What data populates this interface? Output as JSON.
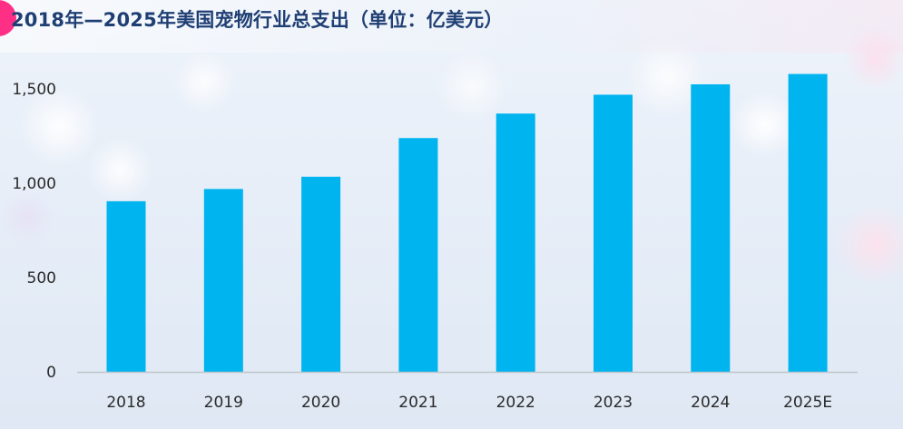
{
  "title": "2018年—2025年美国宠物行业总支出（单位：亿美元）",
  "colors": {
    "bar": "#00b4f0",
    "title": "#1f3f74",
    "accent": "#ff2f86",
    "axis": "#bfc5cc"
  },
  "chart_data": {
    "type": "bar",
    "title": "2018年—2025年美国宠物行业总支出（单位：亿美元）",
    "xlabel": "",
    "ylabel": "",
    "categories": [
      "2018",
      "2019",
      "2020",
      "2021",
      "2022",
      "2023",
      "2024",
      "2025E"
    ],
    "values": [
      905,
      970,
      1035,
      1240,
      1370,
      1470,
      1525,
      1580
    ],
    "ylim": [
      0,
      1650
    ],
    "yticks": [
      0,
      500,
      1000,
      1500
    ],
    "ytick_labels": [
      "0",
      "500",
      "1,000",
      "1,500"
    ],
    "grid": false,
    "legend": "none"
  }
}
